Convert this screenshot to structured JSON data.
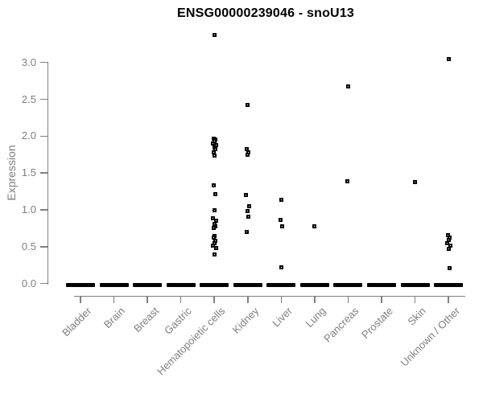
{
  "page": {
    "background": "#ffffff"
  },
  "chart_data": {
    "type": "scatter",
    "subtype": "strip-plot",
    "title": "ENSG00000239046 - snoU13",
    "xlabel": "",
    "ylabel": "Expression",
    "yticks": [
      "0.0",
      "0.5",
      "1.0",
      "1.5",
      "2.0",
      "2.5",
      "3.0"
    ],
    "ylim": [
      -0.05,
      3.45
    ],
    "grid": false,
    "legend": false,
    "marker": "open-square",
    "colors": {
      "title": "#000000",
      "axis_text": "#7f7f7f",
      "axis_line": "#7f7f7f",
      "marker": "#000000"
    },
    "categories": [
      "Bladder",
      "Brain",
      "Breast",
      "Gastric",
      "Hematopoietic cells",
      "Kidney",
      "Liver",
      "Lung",
      "Pancreas",
      "Prostate",
      "Skin",
      "Unknown / Other"
    ],
    "series": [
      {
        "name": "Bladder",
        "zero_cluster": true,
        "values": []
      },
      {
        "name": "Brain",
        "zero_cluster": true,
        "values": []
      },
      {
        "name": "Breast",
        "zero_cluster": true,
        "values": []
      },
      {
        "name": "Gastric",
        "zero_cluster": true,
        "values": []
      },
      {
        "name": "Hematopoietic cells",
        "zero_cluster": true,
        "values": [
          3.37,
          1.97,
          1.95,
          1.93,
          1.9,
          1.88,
          1.85,
          1.82,
          1.78,
          1.74,
          1.33,
          1.21,
          1.0,
          0.89,
          0.85,
          0.81,
          0.78,
          0.75,
          0.65,
          0.62,
          0.58,
          0.55,
          0.52,
          0.48,
          0.4
        ]
      },
      {
        "name": "Kidney",
        "zero_cluster": true,
        "values": [
          2.42,
          1.82,
          1.78,
          1.75,
          1.2,
          1.05,
          0.98,
          0.91,
          0.7
        ]
      },
      {
        "name": "Liver",
        "zero_cluster": true,
        "values": [
          1.14,
          0.86,
          0.78,
          0.22
        ]
      },
      {
        "name": "Lung",
        "zero_cluster": true,
        "values": [
          0.78
        ]
      },
      {
        "name": "Pancreas",
        "zero_cluster": true,
        "values": [
          2.67,
          1.39
        ]
      },
      {
        "name": "Prostate",
        "zero_cluster": true,
        "values": []
      },
      {
        "name": "Skin",
        "zero_cluster": true,
        "values": [
          1.38
        ]
      },
      {
        "name": "Unknown / Other",
        "zero_cluster": true,
        "values": [
          3.05,
          0.66,
          0.62,
          0.59,
          0.55,
          0.52,
          0.47,
          0.21
        ]
      }
    ]
  }
}
